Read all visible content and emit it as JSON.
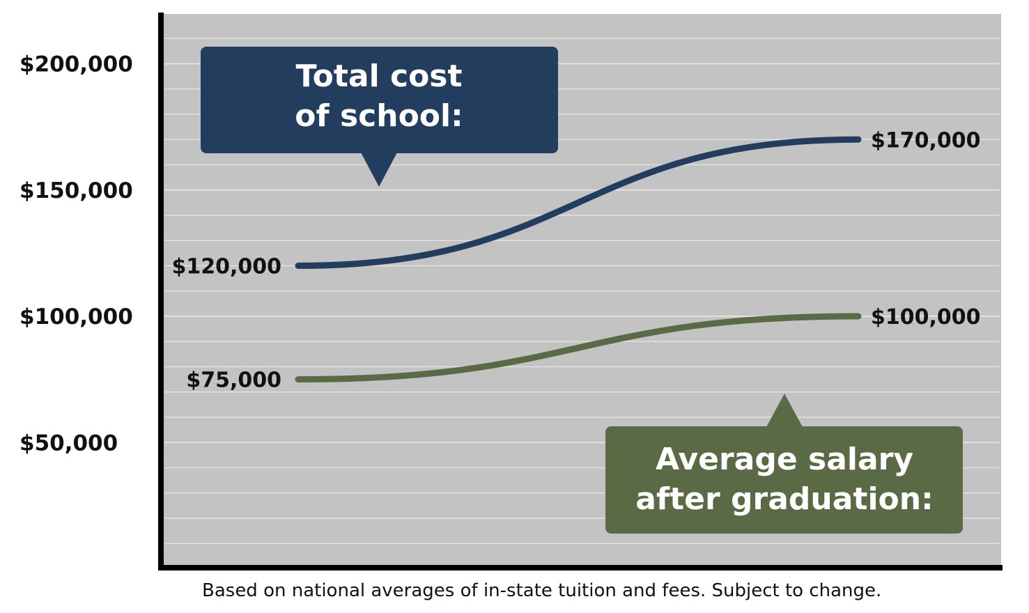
{
  "colors": {
    "plot_background": "#c3c3c3",
    "gridline": "#e2e2e2",
    "axis": "#000000",
    "cost_line": "#223d5e",
    "salary_line": "#5a6a45"
  },
  "chart_data": {
    "type": "line",
    "y_ticks": [
      {
        "value": 200000,
        "label": "$200,000"
      },
      {
        "value": 150000,
        "label": "$150,000"
      },
      {
        "value": 100000,
        "label": "$100,000"
      },
      {
        "value": 50000,
        "label": "$50,000"
      }
    ],
    "ylim": [
      0,
      220000
    ],
    "grid": true,
    "series": [
      {
        "key": "cost",
        "values": [
          120000,
          170000
        ],
        "start_label": "$120,000",
        "end_label": "$170,000",
        "color": "#223d5e"
      },
      {
        "key": "salary",
        "values": [
          75000,
          100000
        ],
        "start_label": "$75,000",
        "end_label": "$100,000",
        "color": "#5a6a45"
      }
    ],
    "callouts": {
      "cost": {
        "line1": "Total cost",
        "line2": "of school:"
      },
      "salary": {
        "line1": "Average salary",
        "line2": "after graduation:"
      }
    }
  },
  "footnote": "Based on national averages of in-state tuition and fees. Subject to change."
}
